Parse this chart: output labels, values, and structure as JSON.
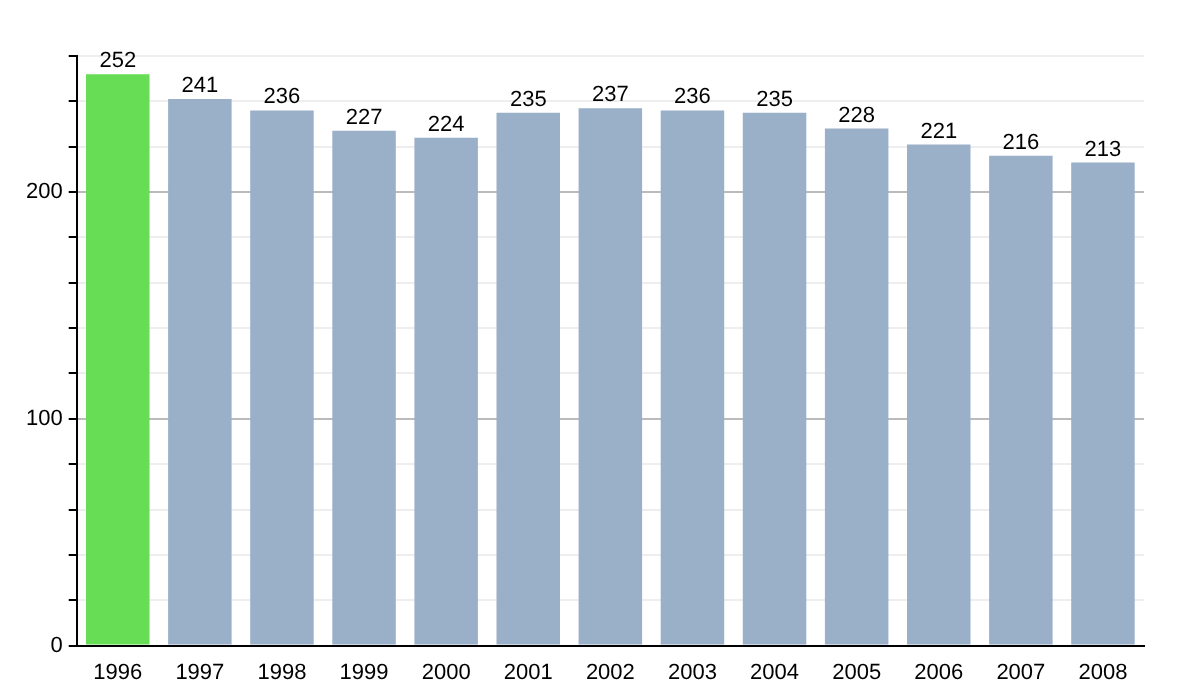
{
  "chart_data": {
    "type": "bar",
    "categories": [
      "1996",
      "1997",
      "1998",
      "1999",
      "2000",
      "2001",
      "2002",
      "2003",
      "2004",
      "2005",
      "2006",
      "2007",
      "2008"
    ],
    "values": [
      252,
      241,
      236,
      227,
      224,
      235,
      237,
      236,
      235,
      228,
      221,
      216,
      213
    ],
    "colors": [
      "#66dd55",
      "#9ab0c8",
      "#9ab0c8",
      "#9ab0c8",
      "#9ab0c8",
      "#9ab0c8",
      "#9ab0c8",
      "#9ab0c8",
      "#9ab0c8",
      "#9ab0c8",
      "#9ab0c8",
      "#9ab0c8",
      "#9ab0c8"
    ],
    "ylim": [
      0,
      260
    ],
    "yticks": [
      0,
      {
        "value": 20,
        "label": null
      },
      {
        "value": 40,
        "label": null
      },
      {
        "value": 60,
        "label": null
      },
      {
        "value": 80,
        "label": null
      },
      100,
      {
        "value": 120,
        "label": null
      },
      {
        "value": 140,
        "label": null
      },
      {
        "value": 160,
        "label": null
      },
      {
        "value": 180,
        "label": null
      },
      200,
      {
        "value": 220,
        "label": null
      },
      {
        "value": 240,
        "label": null
      },
      {
        "value": 260,
        "label": null
      }
    ],
    "grid": "y",
    "data_labels": true,
    "legend": false
  }
}
